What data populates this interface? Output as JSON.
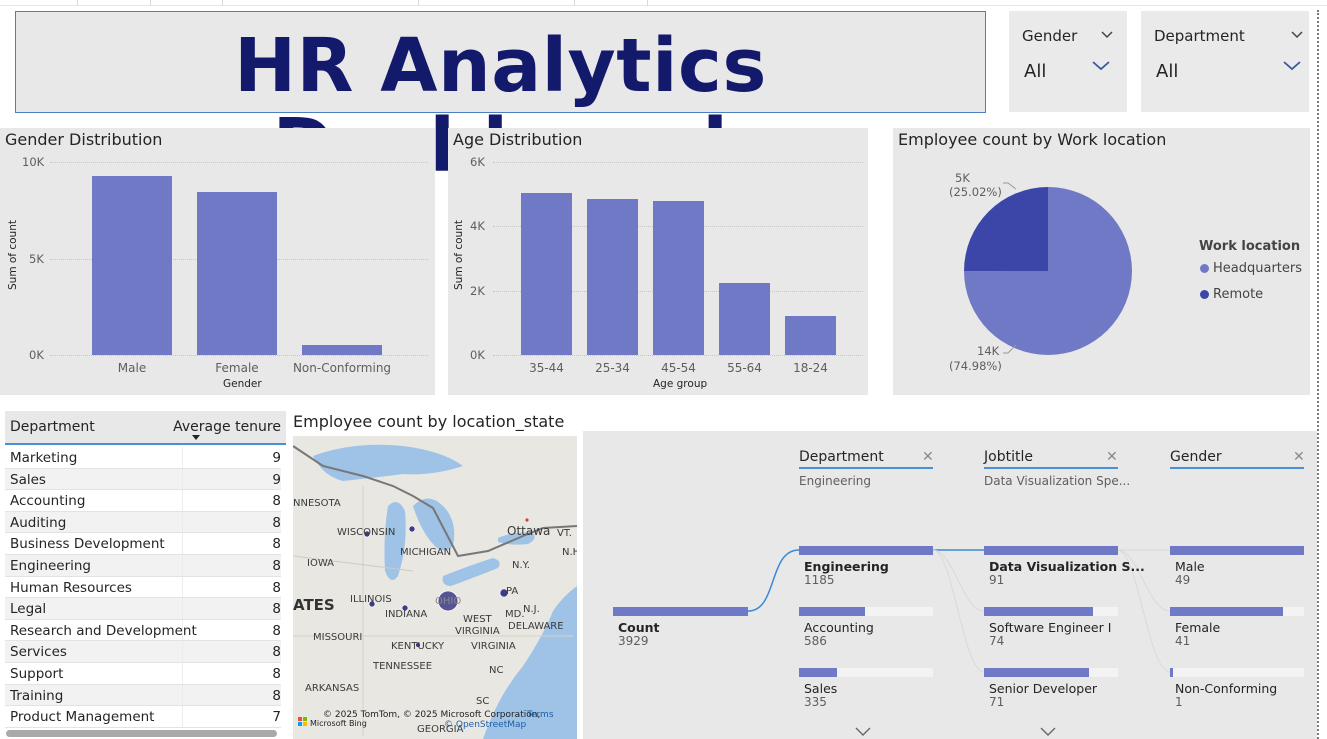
{
  "title": "HR Analytics Dashboard",
  "slicers": [
    {
      "title": "Gender",
      "value": "All"
    },
    {
      "title": "Department",
      "value": "All"
    }
  ],
  "gender_chart": {
    "title": "Gender Distribution",
    "ylabel": "Sum of count",
    "xlabel": "Gender",
    "yticks": [
      "10K",
      "5K",
      "0K"
    ]
  },
  "age_chart": {
    "title": "Age Distribution",
    "ylabel": "Sum of count",
    "xlabel": "Age group",
    "yticks": [
      "6K",
      "4K",
      "2K",
      "0K"
    ]
  },
  "location_chart": {
    "title": "Employee count by Work location",
    "legend_title": "Work location",
    "slice_labels": [
      {
        "value": "5K",
        "pct": "(25.02%)"
      },
      {
        "value": "14K",
        "pct": "(74.98%)"
      }
    ]
  },
  "chart_data": [
    {
      "type": "bar",
      "title": "Gender Distribution",
      "xlabel": "Gender",
      "ylabel": "Sum of count",
      "categories": [
        "Male",
        "Female",
        "Non-Conforming"
      ],
      "values": [
        9300,
        8450,
        500
      ],
      "ylim": [
        0,
        10000
      ],
      "grid": true,
      "color": "#7079c6"
    },
    {
      "type": "bar",
      "title": "Age Distribution",
      "xlabel": "Age group",
      "ylabel": "Sum of count",
      "categories": [
        "35-44",
        "25-34",
        "45-54",
        "55-64",
        "18-24"
      ],
      "values": [
        5050,
        4850,
        4800,
        2250,
        1200
      ],
      "ylim": [
        0,
        6000
      ],
      "grid": true,
      "color": "#7079c6"
    },
    {
      "type": "pie",
      "title": "Employee count by Work location",
      "labels": [
        "Headquarters",
        "Remote"
      ],
      "values": [
        74.98,
        25.02
      ],
      "colors": [
        "#7079c6",
        "#3c46a8"
      ],
      "legend": "right"
    }
  ],
  "table": {
    "headers": [
      "Department",
      "Average tenure"
    ],
    "rows": [
      [
        "Marketing",
        "9"
      ],
      [
        "Sales",
        "9"
      ],
      [
        "Accounting",
        "8"
      ],
      [
        "Auditing",
        "8"
      ],
      [
        "Business Development",
        "8"
      ],
      [
        "Engineering",
        "8"
      ],
      [
        "Human Resources",
        "8"
      ],
      [
        "Legal",
        "8"
      ],
      [
        "Research and Development",
        "8"
      ],
      [
        "Services",
        "8"
      ],
      [
        "Support",
        "8"
      ],
      [
        "Training",
        "8"
      ],
      [
        "Product Management",
        "7"
      ]
    ]
  },
  "map": {
    "title": "Employee count by location_state",
    "labels": [
      "NNESOTA",
      "WISCONSIN",
      "MICHIGAN",
      "IOWA",
      "ILLINOIS",
      "INDIANA",
      "OHIO",
      "ATES",
      "Ottawa",
      "N.Y.",
      "VT.",
      "N.H.",
      "PA",
      "MD.",
      "N.J.",
      "DELAWARE",
      "WEST",
      "VIRGINIA",
      "MISSOURI",
      "KENTUCKY",
      "VIRGINIA",
      "TENNESSEE",
      "NC",
      "ARKANSAS",
      "SC",
      "GEORGIA"
    ],
    "copyright": "© 2025 TomTom, © 2025 Microsoft Corporation,",
    "terms": "Terms",
    "osm": "© OpenStreetMap",
    "bing": "Microsoft Bing"
  },
  "decomp": {
    "root": {
      "label": "Count",
      "value": "3929"
    },
    "columns": [
      {
        "header": "Department",
        "selected": "Engineering",
        "nodes": [
          {
            "label": "Engineering",
            "value": "1185",
            "fill": 1.0
          },
          {
            "label": "Accounting",
            "value": "586",
            "fill": 0.49
          },
          {
            "label": "Sales",
            "value": "335",
            "fill": 0.28
          }
        ]
      },
      {
        "header": "Jobtitle",
        "selected": "Data Visualization Spe...",
        "nodes": [
          {
            "label": "Data Visualization S...",
            "value": "91",
            "fill": 1.0
          },
          {
            "label": "Software Engineer I",
            "value": "74",
            "fill": 0.81
          },
          {
            "label": "Senior Developer",
            "value": "71",
            "fill": 0.78
          }
        ]
      },
      {
        "header": "Gender",
        "selected": "",
        "nodes": [
          {
            "label": "Male",
            "value": "49",
            "fill": 1.0
          },
          {
            "label": "Female",
            "value": "41",
            "fill": 0.84
          },
          {
            "label": "Non-Conforming",
            "value": "1",
            "fill": 0.02
          }
        ]
      }
    ]
  }
}
